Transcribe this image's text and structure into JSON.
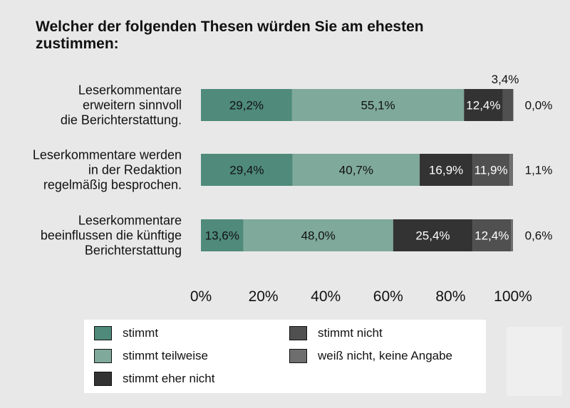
{
  "title": "Welcher der folgenden Thesen würden Sie am ehesten zustimmen:",
  "colors": {
    "stimmt": "#4f8a7a",
    "stimmt_teilweise": "#7fa99a",
    "stimmt_eher_nicht": "#333333",
    "stimmt_nicht": "#505050",
    "weiss_nicht": "#6e6e6e"
  },
  "chart_data": {
    "type": "bar",
    "orientation": "horizontal",
    "stacked": true,
    "xlim": [
      0,
      100
    ],
    "xticks": [
      "0%",
      "20%",
      "40%",
      "60%",
      "80%",
      "100%"
    ],
    "categories": [
      [
        "Leserkommentare",
        "erweitern sinnvoll",
        "die Berichterstattung."
      ],
      [
        "Leserkommentare werden",
        "in der Redaktion",
        "regelmäßig besprochen."
      ],
      [
        "Leserkommentare",
        "beeinflussen die künftige",
        "Berichterstattung"
      ]
    ],
    "series": [
      {
        "name": "stimmt",
        "values": [
          29.2,
          29.4,
          13.6
        ],
        "labels": [
          "29,2%",
          "29,4%",
          "13,6%"
        ]
      },
      {
        "name": "stimmt teilweise",
        "values": [
          55.1,
          40.7,
          48.0
        ],
        "labels": [
          "55,1%",
          "40,7%",
          "48,0%"
        ]
      },
      {
        "name": "stimmt eher nicht",
        "values": [
          12.4,
          16.9,
          25.4
        ],
        "labels": [
          "12,4%",
          "16,9%",
          "25,4%"
        ]
      },
      {
        "name": "stimmt nicht",
        "values": [
          3.4,
          11.9,
          12.4
        ],
        "labels": [
          "3,4%",
          "11,9%",
          "12,4%"
        ]
      },
      {
        "name": "weiß nicht, keine Angabe",
        "values": [
          0.0,
          1.1,
          0.6
        ],
        "labels": [
          "0,0%",
          "1,1%",
          "0,6%"
        ]
      }
    ]
  },
  "legend": [
    {
      "label": "stimmt",
      "color_key": "stimmt"
    },
    {
      "label": "stimmt teilweise",
      "color_key": "stimmt_teilweise"
    },
    {
      "label": "stimmt eher nicht",
      "color_key": "stimmt_eher_nicht"
    },
    {
      "label": "stimmt nicht",
      "color_key": "stimmt_nicht"
    },
    {
      "label": "weiß nicht, keine Angabe",
      "color_key": "weiss_nicht"
    }
  ]
}
